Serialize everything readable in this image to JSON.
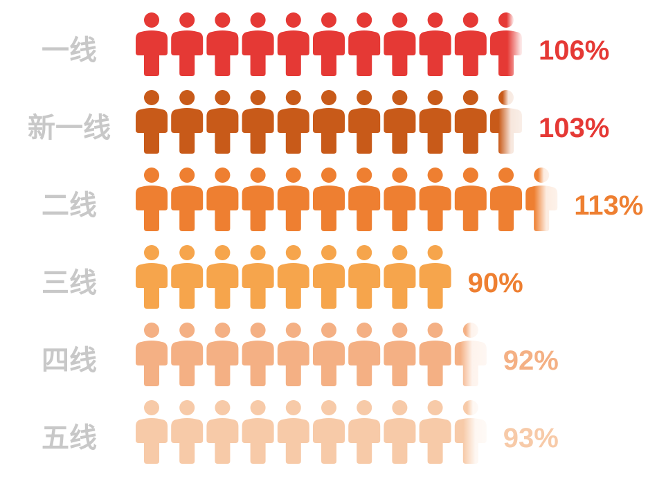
{
  "chart_data": {
    "type": "pictorial-bar",
    "title": "",
    "icon": "person-icon",
    "unit_percent_per_icon": 10,
    "categories": [
      "一线",
      "新一线",
      "二线",
      "三线",
      "四线",
      "五线"
    ],
    "values": [
      106,
      103,
      113,
      90,
      92,
      93
    ],
    "value_labels": [
      "106%",
      "103%",
      "113%",
      "90%",
      "92%",
      "93%"
    ],
    "colors": [
      "#e53935",
      "#c85a19",
      "#ee7f31",
      "#f6a54c",
      "#f4b084",
      "#f7caa8"
    ],
    "label_colors": [
      "#e53935",
      "#e53935",
      "#ee7f31",
      "#ee7f31",
      "#f4b084",
      "#f7caa8"
    ],
    "category_label_color": "#c8c8c8",
    "grid": false,
    "legend": "none"
  }
}
